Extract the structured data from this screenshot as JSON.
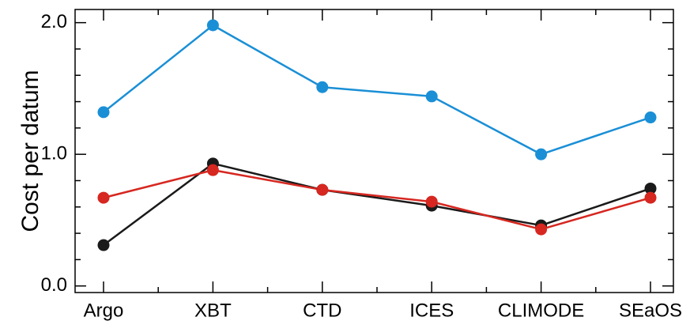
{
  "chart_data": {
    "type": "line",
    "title": "",
    "xlabel": "",
    "ylabel": "Cost per datum",
    "categories": [
      "Argo",
      "XBT",
      "CTD",
      "ICES",
      "CLIMODE",
      "SEaOS"
    ],
    "ylim": [
      -0.05,
      2.1
    ],
    "y_ticks": [
      "0.0",
      "1.0",
      "2.0"
    ],
    "grid": false,
    "legend": "none",
    "series": [
      {
        "color": "#1a8fd6",
        "values": [
          1.32,
          1.98,
          1.51,
          1.44,
          1.0,
          1.28
        ]
      },
      {
        "color": "#1a1a1a",
        "values": [
          0.31,
          0.93,
          0.73,
          0.61,
          0.46,
          0.74
        ]
      },
      {
        "color": "#d62720",
        "values": [
          0.67,
          0.88,
          0.73,
          0.64,
          0.43,
          0.67
        ]
      }
    ]
  }
}
